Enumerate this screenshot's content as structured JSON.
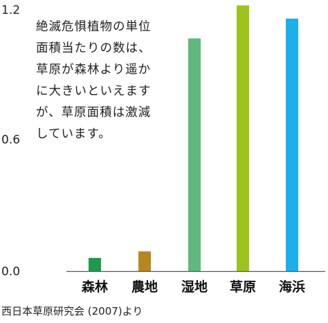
{
  "chart_data": {
    "type": "bar",
    "categories": [
      "森林",
      "農地",
      "湿地",
      "草原",
      "海浜"
    ],
    "values": [
      0.06,
      0.09,
      1.06,
      1.21,
      1.15
    ],
    "colors": [
      "#1f9a48",
      "#b8861f",
      "#5fb97f",
      "#9cc41c",
      "#1bb0ea"
    ],
    "ylim": [
      0,
      1.2
    ],
    "yticks": [
      "0.0",
      "0.6",
      "1.2"
    ],
    "grid": false,
    "annotation_lines": [
      "絶滅危惧植物の単位",
      "面積当たりの数は、",
      "草原が森林より遥か",
      "に大きいといえます",
      "が、草原面積は激減",
      "しています。"
    ],
    "source": "西日本草原研究会 (2007)より"
  }
}
